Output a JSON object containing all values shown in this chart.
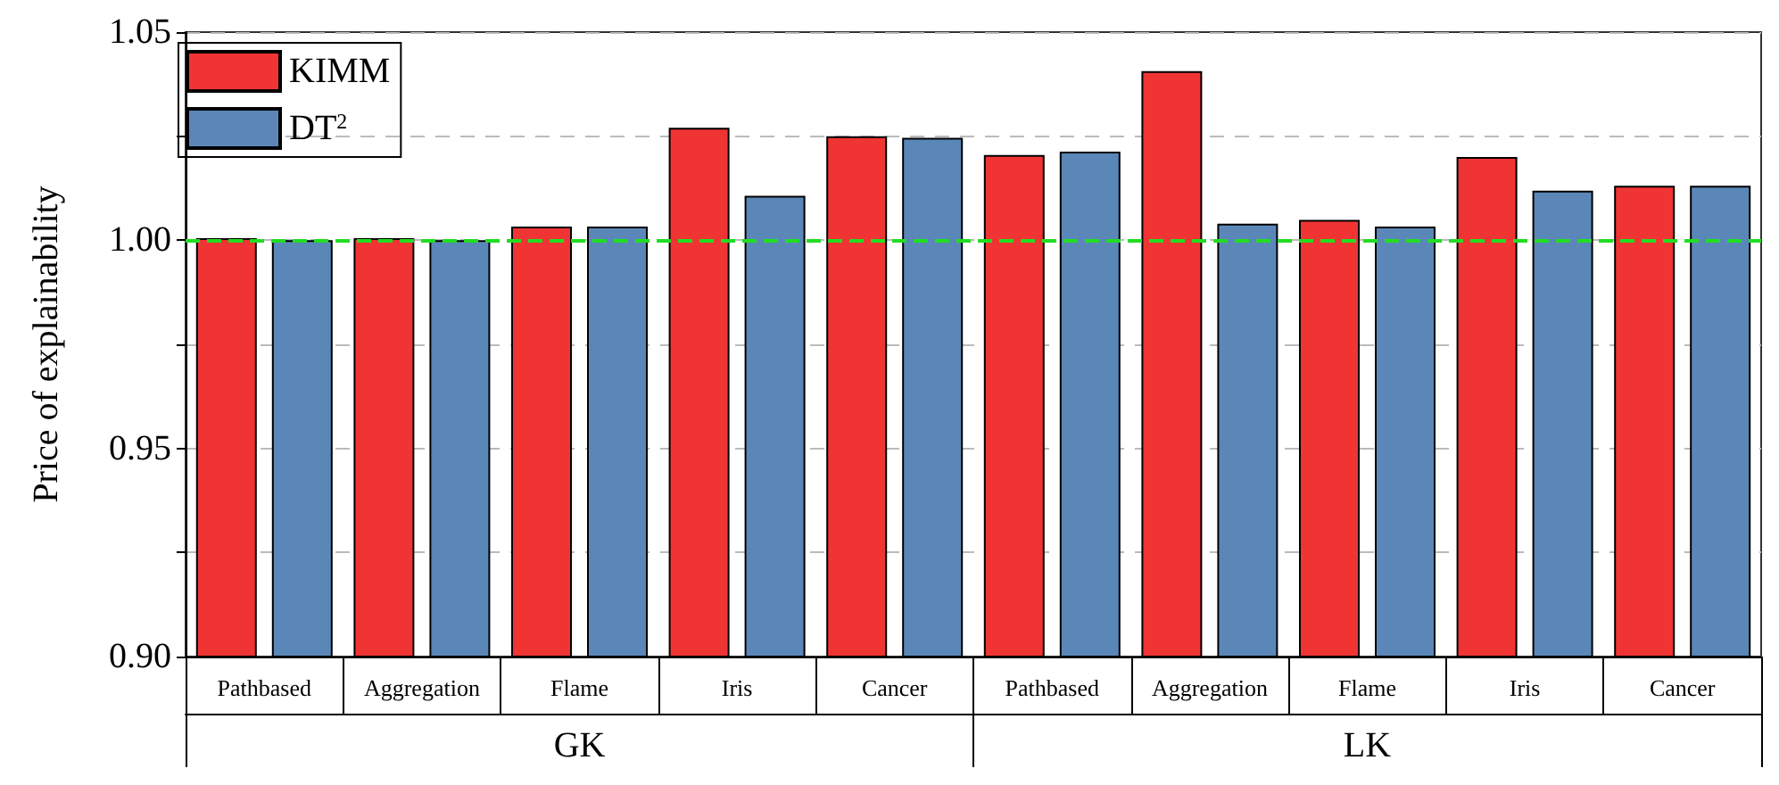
{
  "chart_data": {
    "type": "bar",
    "ylabel": "Price of explainability",
    "categories": [
      "Pathbased",
      "Aggregation",
      "Flame",
      "Iris",
      "Cancer",
      "Pathbased",
      "Aggregation",
      "Flame",
      "Iris",
      "Cancer"
    ],
    "series": [
      {
        "name": "KIMM",
        "color": "#f03434",
        "values": [
          1.0005,
          1.0005,
          1.0033,
          1.027,
          1.025,
          1.0205,
          1.0406,
          1.0049,
          1.02,
          1.0131
        ]
      },
      {
        "name": "DT$^{2}$",
        "color": "#5a87b8",
        "values": [
          1.0,
          1.0,
          1.0033,
          1.0107,
          1.0246,
          1.0213,
          1.004,
          1.0033,
          1.0119,
          1.0131
        ]
      }
    ],
    "annotations": [
      "GK",
      "LK"
    ],
    "ylim": [
      0.9,
      1.05
    ],
    "yticks": [
      {
        "value": 0.9,
        "label": "0.90"
      },
      {
        "value": 0.925,
        "label": null
      },
      {
        "value": 0.95,
        "label": "0.95"
      },
      {
        "value": 0.975,
        "label": null
      },
      {
        "value": 1.0,
        "label": "1.00"
      },
      {
        "value": 1.025,
        "label": null
      },
      {
        "value": 1.05,
        "label": "1.05"
      }
    ],
    "grid": "y",
    "legend": "top left",
    "ref_lines": [
      {
        "axis": "y",
        "value": 1.0,
        "label": null,
        "color": "#22dd22",
        "line_style": "dashed"
      }
    ]
  }
}
